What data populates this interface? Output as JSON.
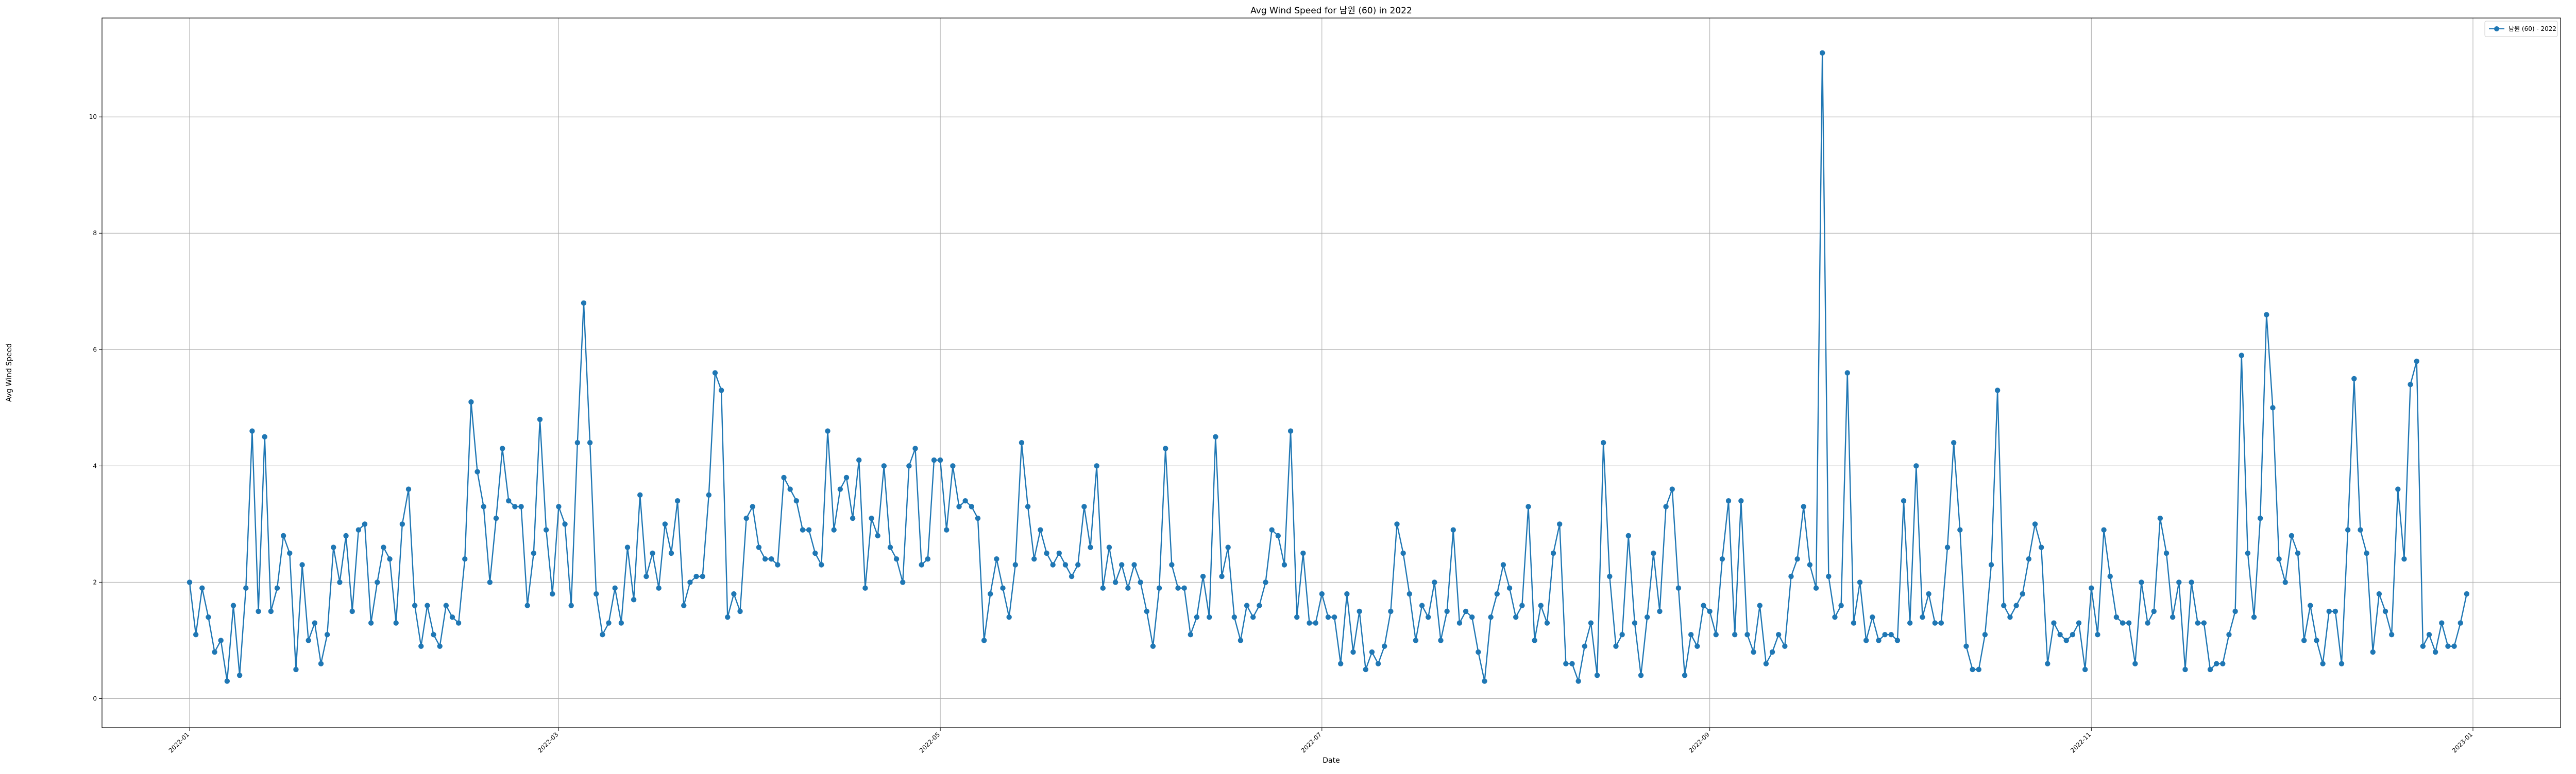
{
  "chart_data": {
    "type": "line",
    "title": "Avg Wind Speed for 남원 (60) in 2022",
    "xlabel": "Date",
    "ylabel": "Avg Wind Speed",
    "ylim": [
      -0.5,
      11.7
    ],
    "xlim": [
      "2021-12-18",
      "2023-01-15"
    ],
    "grid": true,
    "legend_position": "top-right",
    "color": "#1f77b4",
    "y_ticks": [
      0,
      2,
      4,
      6,
      8,
      10
    ],
    "x_ticks": [
      "2022-01",
      "2022-03",
      "2022-05",
      "2022-07",
      "2022-09",
      "2022-11",
      "2023-01"
    ],
    "x_tick_dates": [
      "2022-01-01",
      "2022-03-01",
      "2022-05-01",
      "2022-07-01",
      "2022-09-01",
      "2022-11-01",
      "2023-01-01"
    ],
    "x_start_date": "2022-01-01",
    "series": [
      {
        "name": "남원 (60) - 2022",
        "values": [
          2.0,
          1.1,
          1.9,
          1.4,
          0.8,
          1.0,
          0.3,
          1.6,
          0.4,
          1.9,
          4.6,
          1.5,
          4.5,
          1.5,
          1.9,
          2.8,
          2.5,
          0.5,
          2.3,
          1.0,
          1.3,
          0.6,
          1.1,
          2.6,
          2.0,
          2.8,
          1.5,
          2.9,
          3.0,
          1.3,
          2.0,
          2.6,
          2.4,
          1.3,
          3.0,
          3.6,
          1.6,
          0.9,
          1.6,
          1.1,
          0.9,
          1.6,
          1.4,
          1.3,
          2.4,
          5.1,
          3.9,
          3.3,
          2.0,
          3.1,
          4.3,
          3.4,
          3.3,
          3.3,
          1.6,
          2.5,
          4.8,
          2.9,
          1.8,
          3.3,
          3.0,
          1.6,
          4.4,
          6.8,
          4.4,
          1.8,
          1.1,
          1.3,
          1.9,
          1.3,
          2.6,
          1.7,
          3.5,
          2.1,
          2.5,
          1.9,
          3.0,
          2.5,
          3.4,
          1.6,
          2.0,
          2.1,
          2.1,
          3.5,
          5.6,
          5.3,
          1.4,
          1.8,
          1.5,
          3.1,
          3.3,
          2.6,
          2.4,
          2.4,
          2.3,
          3.8,
          3.6,
          3.4,
          2.9,
          2.9,
          2.5,
          2.3,
          4.6,
          2.9,
          3.6,
          3.8,
          3.1,
          4.1,
          1.9,
          3.1,
          2.8,
          4.0,
          2.6,
          2.4,
          2.0,
          4.0,
          4.3,
          2.3,
          2.4,
          4.1,
          4.1,
          2.9,
          4.0,
          3.3,
          3.4,
          3.3,
          3.1,
          1.0,
          1.8,
          2.4,
          1.9,
          1.4,
          2.3,
          4.4,
          3.3,
          2.4,
          2.9,
          2.5,
          2.3,
          2.5,
          2.3,
          2.1,
          2.3,
          3.3,
          2.6,
          4.0,
          1.9,
          2.6,
          2.0,
          2.3,
          1.9,
          2.3,
          2.0,
          1.5,
          0.9,
          1.9,
          4.3,
          2.3,
          1.9,
          1.9,
          1.1,
          1.4,
          2.1,
          1.4,
          4.5,
          2.1,
          2.6,
          1.4,
          1.0,
          1.6,
          1.4,
          1.6,
          2.0,
          2.9,
          2.8,
          2.3,
          4.6,
          1.4,
          2.5,
          1.3,
          1.3,
          1.8,
          1.4,
          1.4,
          0.6,
          1.8,
          0.8,
          1.5,
          0.5,
          0.8,
          0.6,
          0.9,
          1.5,
          3.0,
          2.5,
          1.8,
          1.0,
          1.6,
          1.4,
          2.0,
          1.0,
          1.5,
          2.9,
          1.3,
          1.5,
          1.4,
          0.8,
          0.3,
          1.4,
          1.8,
          2.3,
          1.9,
          1.4,
          1.6,
          3.3,
          1.0,
          1.6,
          1.3,
          2.5,
          3.0,
          0.6,
          0.6,
          0.3,
          0.9,
          1.3,
          0.4,
          4.4,
          2.1,
          0.9,
          1.1,
          2.8,
          1.3,
          0.4,
          1.4,
          2.5,
          1.5,
          3.3,
          3.6,
          1.9,
          0.4,
          1.1,
          0.9,
          1.6,
          1.5,
          1.1,
          2.4,
          3.4,
          1.1,
          3.4,
          1.1,
          0.8,
          1.6,
          0.6,
          0.8,
          1.1,
          0.9,
          2.1,
          2.4,
          3.3,
          2.3,
          1.9,
          11.1,
          2.1,
          1.4,
          1.6,
          5.6,
          1.3,
          2.0,
          1.0,
          1.4,
          1.0,
          1.1,
          1.1,
          1.0,
          3.4,
          1.3,
          4.0,
          1.4,
          1.8,
          1.3,
          1.3,
          2.6,
          4.4,
          2.9,
          0.9,
          0.5,
          0.5,
          1.1,
          2.3,
          5.3,
          1.6,
          1.4,
          1.6,
          1.8,
          2.4,
          3.0,
          2.6,
          0.6,
          1.3,
          1.1,
          1.0,
          1.1,
          1.3,
          0.5,
          1.9,
          1.1,
          2.9,
          2.1,
          1.4,
          1.3,
          1.3,
          0.6,
          2.0,
          1.3,
          1.5,
          3.1,
          2.5,
          1.4,
          2.0,
          0.5,
          2.0,
          1.3,
          1.3,
          0.5,
          0.6,
          0.6,
          1.1,
          1.5,
          5.9,
          2.5,
          1.4,
          3.1,
          6.6,
          5.0,
          2.4,
          2.0,
          2.8,
          2.5,
          1.0,
          1.6,
          1.0,
          0.6,
          1.5,
          1.5,
          0.6,
          2.9,
          5.5,
          2.9,
          2.5,
          0.8,
          1.8,
          1.5,
          1.1,
          3.6,
          2.4,
          5.4,
          5.8,
          0.9,
          1.1,
          0.8,
          1.3,
          0.9,
          0.9,
          1.3,
          1.8
        ]
      }
    ]
  }
}
